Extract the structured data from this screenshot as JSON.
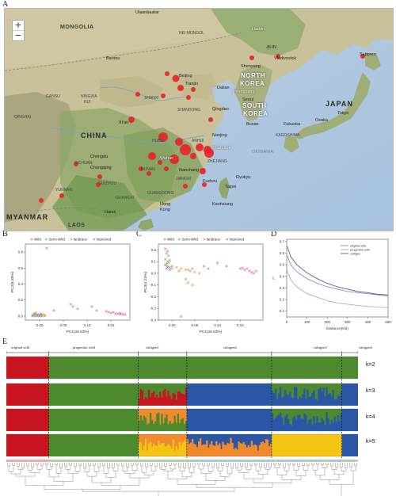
{
  "panel_labels": {
    "a": "A",
    "b": "B",
    "c": "C",
    "d": "D",
    "e": "E"
  },
  "map": {
    "zoom_in": "+",
    "zoom_out": "−",
    "countries": {
      "mongolia": "MONGOLIA",
      "china": "CHINA",
      "north_korea_1": "NORTH",
      "north_korea_2": "KOREA",
      "south_korea_1": "SOUTH",
      "south_korea_2": "KOREA",
      "japan": "JAPAN",
      "myanmar": "MYANMAR",
      "laos": "LAOS"
    },
    "cities": {
      "ulaanbaatar": "Ulaanbaatar",
      "harbin": "Harbin",
      "jilin": "JILIN",
      "sapporo": "Sapporo",
      "nei_mongol": "NEI MONGOL",
      "shenyang": "Shenyang",
      "vladivostok": "Vladivostok",
      "baotou": "Baotou",
      "beijing": "Beijing",
      "tianjin": "Tianjin",
      "dalian": "Dalian",
      "pyongyang": "Pyongyang",
      "seoul": "Seoul",
      "busan": "Busan",
      "gansu": "GANSU",
      "ningxia": "NINGXIA",
      "hui": "HUI",
      "shanxi": "SHANXI",
      "shandong": "SHANDONG",
      "qingdao": "Qingdao",
      "qinghai": "QINGHAI",
      "xian": "Xi'an",
      "nanjing": "Nanjing",
      "shanghai": "Shanghai",
      "anhui": "ANHUI",
      "hubei": "HUBEI",
      "chengdu": "Chengdu",
      "wuhan": "Wuhan",
      "zhejiang": "ZHEJIANG",
      "chongqing": "Chongqing",
      "sichuan": "SICHUAN",
      "hunan": "HUNAN",
      "nanchang": "Nanchang",
      "jiangxi": "JIANGXI",
      "guizhou": "GUIZHOU",
      "yunnan": "YUNNAN",
      "fuzhou": "Fuzhou",
      "taipei": "Taipei",
      "guangxi": "GUANGXI",
      "guangdong": "GUANGDONG",
      "hong_kong_1": "Hong",
      "hong_kong_2": "Kong",
      "kaohsiung": "Kaohsiung",
      "hanoi": "Hanoi",
      "tokyo": "Tokyo",
      "osaka": "Osaka",
      "fukuoka": "Fukuoka",
      "kagoshima": "KAGOSHIMA",
      "okinawa": "OKINAWA",
      "ryukyu": "Ryukyu"
    },
    "marker_color": "#e8202a"
  },
  "chart_data": [
    {
      "panel": "B",
      "type": "scatter",
      "xlabel": "PC1(30.53%)",
      "ylabel": "PC2(8.38%)",
      "xticks": [
        "0.00",
        "0.05",
        "0.10",
        "0.15"
      ],
      "yticks": [
        "0.0",
        "0.2",
        "0.4",
        "0.6",
        "0.8"
      ],
      "xlim": [
        -0.03,
        0.19
      ],
      "ylim": [
        -0.05,
        0.9
      ],
      "legend": [
        {
          "name": "Wild",
          "color": "#e46fb5"
        },
        {
          "name": "Semi-Wild",
          "color": "#7fbf4a"
        },
        {
          "name": "landrace",
          "color": "#e99a4a"
        },
        {
          "name": "improved",
          "color": "#8e8ed8"
        }
      ],
      "series": [
        {
          "name": "Wild",
          "color": "#e46fb5",
          "points": [
            [
              0.015,
              0.85
            ],
            [
              0.065,
              0.15
            ],
            [
              0.07,
              0.12
            ],
            [
              0.08,
              0.09
            ],
            [
              0.11,
              0.12
            ],
            [
              0.14,
              0.06
            ],
            [
              0.15,
              0.04
            ],
            [
              0.16,
              0.03
            ],
            [
              0.17,
              0.025
            ],
            [
              0.175,
              0.02
            ],
            [
              0.18,
              0.02
            ],
            [
              0.17,
              0.035
            ],
            [
              0.165,
              0.03
            ],
            [
              0.155,
              0.045
            ],
            [
              0.145,
              0.05
            ],
            [
              0.12,
              0.07
            ],
            [
              0.03,
              0.07
            ]
          ]
        },
        {
          "name": "Semi-Wild",
          "color": "#7fbf4a",
          "points": [
            [
              -0.015,
              0.0
            ],
            [
              -0.01,
              0.0
            ],
            [
              -0.005,
              0.01
            ],
            [
              0.0,
              0.005
            ],
            [
              0.005,
              0.0
            ],
            [
              -0.012,
              0.02
            ],
            [
              0.002,
              0.015
            ]
          ]
        },
        {
          "name": "landrace",
          "color": "#e99a4a",
          "points": [
            [
              -0.01,
              0.01
            ],
            [
              -0.005,
              0.0
            ],
            [
              0.0,
              0.02
            ],
            [
              0.005,
              0.01
            ],
            [
              0.01,
              0.0
            ],
            [
              -0.012,
              0.03
            ],
            [
              0.008,
              0.02
            ],
            [
              0.012,
              0.01
            ]
          ]
        },
        {
          "name": "improved",
          "color": "#8e8ed8",
          "points": [
            [
              -0.015,
              0.01
            ],
            [
              -0.01,
              0.03
            ],
            [
              -0.005,
              0.02
            ],
            [
              0.0,
              0.0
            ],
            [
              0.003,
              0.03
            ],
            [
              -0.008,
              0.04
            ]
          ]
        }
      ]
    },
    {
      "panel": "C",
      "type": "scatter",
      "xlabel": "PC1(30.53%)",
      "ylabel": "PC3(4.23%)",
      "xticks": [
        "0.00",
        "0.05",
        "0.10",
        "0.15"
      ],
      "yticks": [
        "-0.4",
        "-0.3",
        "-0.2",
        "-0.1",
        "0.0",
        "0.1",
        "0.2"
      ],
      "xlim": [
        -0.03,
        0.2
      ],
      "ylim": [
        -0.4,
        0.25
      ],
      "legend": [
        {
          "name": "Wild",
          "color": "#e46fb5"
        },
        {
          "name": "Semi-Wild",
          "color": "#7fbf4a"
        },
        {
          "name": "landrace",
          "color": "#e99a4a"
        },
        {
          "name": "improved",
          "color": "#8e8ed8"
        }
      ],
      "series": [
        {
          "name": "Wild",
          "color": "#e46fb5",
          "points": [
            [
              -0.015,
              0.21
            ],
            [
              -0.01,
              0.19
            ],
            [
              -0.012,
              0.17
            ],
            [
              -0.008,
              0.15
            ],
            [
              0.1,
              0.09
            ],
            [
              0.12,
              0.06
            ],
            [
              0.15,
              0.04
            ],
            [
              0.16,
              0.03
            ],
            [
              0.17,
              0.02
            ],
            [
              0.175,
              0.01
            ],
            [
              0.18,
              0.0
            ],
            [
              0.185,
              0.02
            ],
            [
              0.165,
              0.04
            ],
            [
              0.155,
              0.045
            ],
            [
              0.07,
              0.06
            ],
            [
              0.08,
              0.04
            ],
            [
              0.02,
              -0.37
            ]
          ]
        },
        {
          "name": "Semi-Wild",
          "color": "#7fbf4a",
          "points": [
            [
              -0.015,
              0.12
            ],
            [
              -0.01,
              0.1
            ],
            [
              -0.005,
              0.11
            ],
            [
              -0.012,
              0.08
            ],
            [
              -0.008,
              0.09
            ]
          ]
        },
        {
          "name": "landrace",
          "color": "#e99a4a",
          "points": [
            [
              -0.01,
              0.06
            ],
            [
              -0.005,
              0.05
            ],
            [
              0.0,
              0.04
            ],
            [
              0.01,
              0.05
            ],
            [
              0.02,
              0.04
            ],
            [
              0.03,
              0.03
            ],
            [
              0.04,
              0.02
            ],
            [
              0.05,
              0.01
            ],
            [
              0.06,
              0.0
            ],
            [
              0.035,
              0.03
            ],
            [
              0.045,
              0.04
            ],
            [
              0.015,
              0.02
            ],
            [
              0.03,
              -0.05
            ],
            [
              0.035,
              -0.08
            ],
            [
              0.045,
              -0.1
            ]
          ]
        },
        {
          "name": "improved",
          "color": "#8e8ed8",
          "points": [
            [
              -0.015,
              0.07
            ],
            [
              -0.01,
              0.05
            ],
            [
              -0.005,
              0.03
            ],
            [
              -0.012,
              0.04
            ],
            [
              0.0,
              0.06
            ]
          ]
        }
      ]
    },
    {
      "panel": "D",
      "type": "line",
      "xlabel": "Distance(Kb)",
      "ylabel": "r²",
      "xticks": [
        "0",
        "100",
        "200",
        "300",
        "400",
        "500"
      ],
      "yticks": [
        "0.1",
        "0.2",
        "0.3",
        "0.4",
        "0.5",
        "0.6",
        "0.7"
      ],
      "xlim": [
        0,
        500
      ],
      "ylim": [
        0.05,
        0.72
      ],
      "legend": [
        {
          "name": "original wild",
          "color": "#8a8ac8"
        },
        {
          "name": "progenitor wild",
          "color": "#d19bb8"
        },
        {
          "name": "cultigen",
          "color": "#57608a"
        }
      ],
      "x": [
        2,
        20,
        50,
        100,
        150,
        200,
        250,
        300,
        350,
        400,
        450,
        500
      ],
      "series": [
        {
          "name": "original wild",
          "color": "#8a8ac8",
          "values": [
            0.58,
            0.5,
            0.44,
            0.38,
            0.34,
            0.31,
            0.29,
            0.27,
            0.26,
            0.25,
            0.24,
            0.23
          ]
        },
        {
          "name": "progenitor wild",
          "color": "#d19bb8",
          "values": [
            0.45,
            0.37,
            0.31,
            0.25,
            0.22,
            0.19,
            0.17,
            0.16,
            0.15,
            0.14,
            0.135,
            0.13
          ]
        },
        {
          "name": "cultigen",
          "color": "#57608a",
          "values": [
            0.66,
            0.57,
            0.5,
            0.43,
            0.38,
            0.34,
            0.31,
            0.29,
            0.27,
            0.26,
            0.245,
            0.24
          ]
        }
      ]
    },
    {
      "panel": "E",
      "type": "bar",
      "groups": [
        "original wild",
        "progenitor wild",
        "cultigen1",
        "cultigen2",
        "cultigen3",
        "cultigen4"
      ],
      "group_fractions": [
        0.105,
        0.222,
        0.12,
        0.21,
        0.174,
        0.04
      ],
      "k_labels": [
        "k=2",
        "k=3",
        "k=4",
        "k=5"
      ],
      "colors": {
        "red": "#c8141e",
        "green": "#4d8a2e",
        "blue": "#2a56a6",
        "orange": "#f08a2c",
        "yellow": "#f2c414"
      },
      "rows": [
        {
          "k": "k=2",
          "groups": [
            [
              "red"
            ],
            [
              "green"
            ],
            [
              "green"
            ],
            [
              "green"
            ],
            [
              "green"
            ],
            [
              "green"
            ]
          ]
        },
        {
          "k": "k=3",
          "groups": [
            [
              "red"
            ],
            [
              "green"
            ],
            [
              "green",
              "red"
            ],
            [
              "blue"
            ],
            [
              "green",
              "blue"
            ],
            [
              "blue"
            ]
          ]
        },
        {
          "k": "k=4",
          "groups": [
            [
              "red"
            ],
            [
              "green"
            ],
            [
              "orange",
              "green"
            ],
            [
              "blue"
            ],
            [
              "green",
              "blue"
            ],
            [
              "blue"
            ]
          ]
        },
        {
          "k": "k=5",
          "groups": [
            [
              "red"
            ],
            [
              "green"
            ],
            [
              "orange",
              "yellow"
            ],
            [
              "blue",
              "orange"
            ],
            [
              "yellow"
            ],
            [
              "blue"
            ]
          ]
        }
      ]
    }
  ]
}
